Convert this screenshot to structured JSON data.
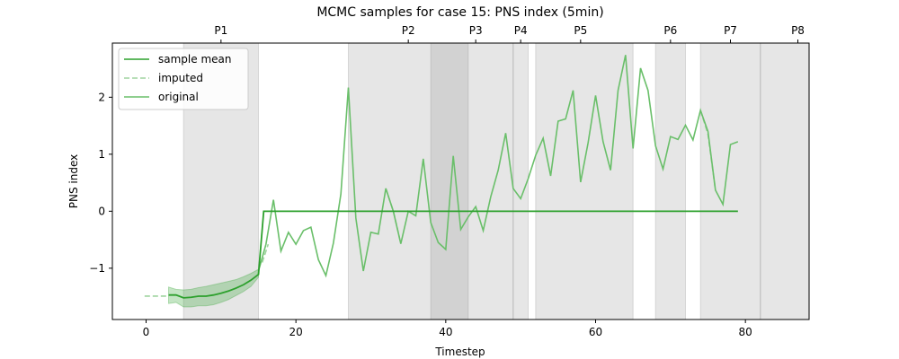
{
  "chart_data": {
    "type": "line",
    "title": "MCMC samples for case 15: PNS index (5min)",
    "xlabel": "Timestep",
    "ylabel": "PNS index",
    "xlim": [
      -4.5,
      88.5
    ],
    "ylim": [
      -1.9,
      2.95
    ],
    "xticks": [
      {
        "value": 0,
        "label": "0"
      },
      {
        "value": 20,
        "label": "20"
      },
      {
        "value": 40,
        "label": "40"
      },
      {
        "value": 60,
        "label": "60"
      },
      {
        "value": 80,
        "label": "80"
      }
    ],
    "yticks": [
      {
        "value": -1,
        "label": "−1"
      },
      {
        "value": 0,
        "label": "0"
      },
      {
        "value": 1,
        "label": "1"
      },
      {
        "value": 2,
        "label": "2"
      }
    ],
    "legend": {
      "placement": "upper-left",
      "entries": [
        {
          "label": "sample mean",
          "style": "solid",
          "color": "#2ca02c"
        },
        {
          "label": "imputed",
          "style": "dashed",
          "color": "#9fd49f"
        },
        {
          "label": "original",
          "style": "solid",
          "color": "#6abf6a"
        }
      ]
    },
    "periods": [
      {
        "label": "P1",
        "start": 5,
        "end": 15,
        "label_x": 10
      },
      {
        "label": "P2",
        "start": 27,
        "end": 43,
        "label_x": 35
      },
      {
        "label": "P3",
        "start": 38,
        "end": 49,
        "label_x": 44
      },
      {
        "label": "P4",
        "start": 49,
        "end": 51,
        "label_x": 50
      },
      {
        "label": "P5",
        "start": 52,
        "end": 65,
        "label_x": 58
      },
      {
        "label": "P6",
        "start": 68,
        "end": 72,
        "label_x": 70
      },
      {
        "label": "P7",
        "start": 74,
        "end": 82,
        "label_x": 78
      },
      {
        "label": "P8",
        "start": 82,
        "end": 93,
        "label_x": 87
      }
    ],
    "series": [
      {
        "name": "sample mean",
        "color": "#2ca02c",
        "x": [
          3,
          4,
          5,
          6,
          7,
          8,
          9,
          10,
          11,
          12,
          13,
          14,
          15,
          15.7,
          16,
          17,
          18,
          19,
          20,
          25,
          30,
          35,
          40,
          45,
          50,
          55,
          60,
          65,
          70,
          75,
          79
        ],
        "y": [
          -1.47,
          -1.47,
          -1.52,
          -1.51,
          -1.49,
          -1.49,
          -1.47,
          -1.44,
          -1.4,
          -1.35,
          -1.29,
          -1.21,
          -1.11,
          0,
          0,
          0,
          0,
          0,
          0,
          0,
          0,
          0,
          0,
          0,
          0,
          0,
          0,
          0,
          0,
          0,
          0
        ]
      },
      {
        "name": "original",
        "color": "#6abf6a",
        "x": [
          15,
          16,
          17,
          18,
          19,
          20,
          21,
          22,
          23,
          24,
          25,
          26,
          27,
          28,
          29,
          30,
          31,
          32,
          33,
          34,
          35,
          36,
          37,
          38,
          39,
          40,
          41,
          42,
          43,
          44,
          45,
          46,
          47,
          48,
          49,
          50,
          51,
          52,
          53,
          54,
          55,
          56,
          57,
          58,
          59,
          60,
          61,
          62,
          63,
          64,
          65,
          66,
          67,
          68,
          69,
          70,
          71,
          72,
          73,
          74,
          75,
          76,
          77,
          78,
          79
        ],
        "y": [
          -1.05,
          -0.58,
          0.2,
          -0.7,
          -0.37,
          -0.58,
          -0.34,
          -0.28,
          -0.85,
          -1.13,
          -0.56,
          0.3,
          2.17,
          -0.12,
          -1.05,
          -0.37,
          -0.4,
          0.4,
          0.0,
          -0.57,
          0.0,
          -0.08,
          0.92,
          -0.2,
          -0.55,
          -0.67,
          0.97,
          -0.32,
          -0.1,
          0.08,
          -0.34,
          0.25,
          0.72,
          1.37,
          0.4,
          0.22,
          0.57,
          0.98,
          1.28,
          0.62,
          1.58,
          1.62,
          2.12,
          0.51,
          1.2,
          2.03,
          1.22,
          0.72,
          2.12,
          2.74,
          1.1,
          2.51,
          2.12,
          1.15,
          0.74,
          1.31,
          1.26,
          1.51,
          1.25,
          1.77,
          1.4,
          0.37,
          0.12,
          1.17,
          1.22
        ]
      }
    ],
    "imputed_segments": [
      {
        "x": [
          -0.2,
          3
        ],
        "y": [
          -1.49,
          -1.49
        ]
      },
      {
        "x": [
          15.5,
          16.3
        ],
        "y": [
          -0.9,
          -0.58
        ]
      },
      {
        "x": [
          32,
          33,
          34
        ],
        "y": [
          0.4,
          0.0,
          -0.57
        ]
      },
      {
        "x": [
          74,
          75,
          76
        ],
        "y": [
          1.77,
          1.35,
          0.37
        ]
      }
    ],
    "uncertainty_band": {
      "x": [
        3,
        4,
        5,
        6,
        7,
        8,
        9,
        10,
        11,
        12,
        13,
        14,
        15
      ],
      "lower": [
        -1.62,
        -1.6,
        -1.68,
        -1.68,
        -1.66,
        -1.66,
        -1.64,
        -1.6,
        -1.55,
        -1.48,
        -1.41,
        -1.32,
        -1.16
      ],
      "upper": [
        -1.33,
        -1.37,
        -1.38,
        -1.37,
        -1.34,
        -1.32,
        -1.29,
        -1.26,
        -1.23,
        -1.2,
        -1.15,
        -1.09,
        -1.02
      ]
    }
  }
}
